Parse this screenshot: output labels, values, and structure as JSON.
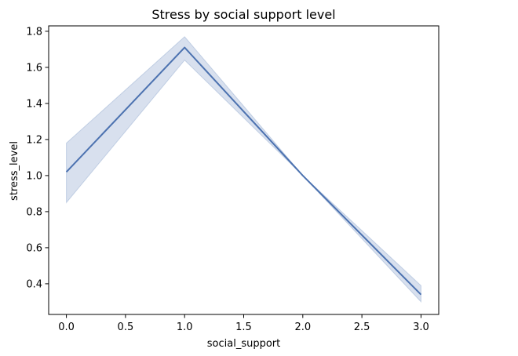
{
  "chart_data": {
    "type": "line",
    "title": "Stress by social support level",
    "xlabel": "social_support",
    "ylabel": "stress_level",
    "xlim": [
      -0.15,
      3.15
    ],
    "ylim": [
      0.23,
      1.83
    ],
    "xticks": [
      0.0,
      0.5,
      1.0,
      1.5,
      2.0,
      2.5,
      3.0
    ],
    "xtick_labels": [
      "0.0",
      "0.5",
      "1.0",
      "1.5",
      "2.0",
      "2.5",
      "3.0"
    ],
    "yticks": [
      0.4,
      0.6,
      0.8,
      1.0,
      1.2,
      1.4,
      1.6,
      1.8
    ],
    "ytick_labels": [
      "0.4",
      "0.6",
      "0.8",
      "1.0",
      "1.2",
      "1.4",
      "1.6",
      "1.8"
    ],
    "grid": false,
    "series": [
      {
        "x": [
          0,
          1,
          2,
          3
        ],
        "y": [
          1.02,
          1.71,
          1.0,
          0.34
        ],
        "ci_lower": [
          0.85,
          1.64,
          1.0,
          0.3
        ],
        "ci_upper": [
          1.18,
          1.77,
          1.0,
          0.39
        ],
        "color": "#4c72b0",
        "band_color": "#4c72b0"
      }
    ]
  }
}
